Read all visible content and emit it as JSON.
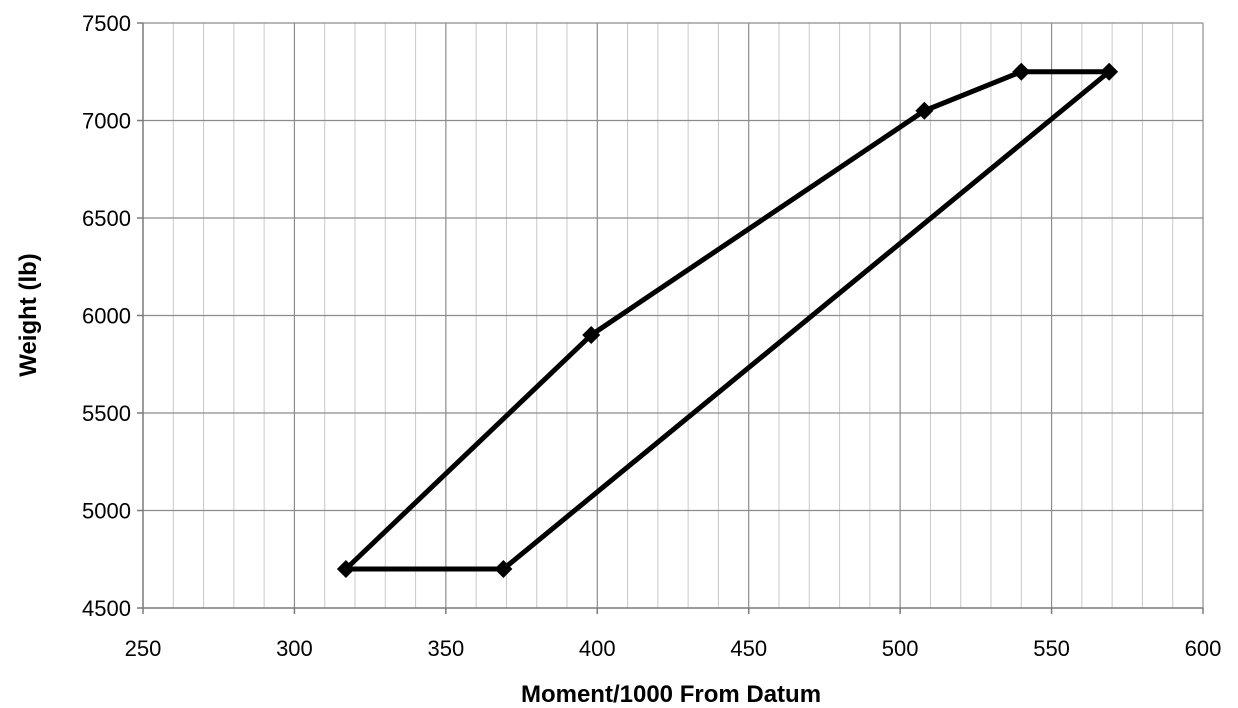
{
  "chart_data": {
    "type": "line",
    "title": "",
    "xlabel": "Moment/1000 From Datum",
    "ylabel": "Weight (lb)",
    "xlim": [
      250,
      600
    ],
    "ylim": [
      4500,
      7500
    ],
    "x_major_ticks": [
      250,
      300,
      350,
      400,
      450,
      500,
      550,
      600
    ],
    "x_tick_labels": [
      "250",
      "300",
      "350",
      "400",
      "450",
      "500",
      "550",
      "600"
    ],
    "x_minor_step": 10,
    "y_major_ticks": [
      4500,
      5000,
      5500,
      6000,
      6500,
      7000,
      7500
    ],
    "y_tick_labels": [
      "4500",
      "5000",
      "5500",
      "6000",
      "6500",
      "7000",
      "7500"
    ],
    "grid": true,
    "legend": "none",
    "series": [
      {
        "color": "#000000",
        "marker": "diamond",
        "points": [
          {
            "x": 317,
            "y": 4700
          },
          {
            "x": 398,
            "y": 5900
          },
          {
            "x": 508,
            "y": 7050
          },
          {
            "x": 540,
            "y": 7250
          },
          {
            "x": 569,
            "y": 7250
          },
          {
            "x": 369,
            "y": 4700
          },
          {
            "x": 317,
            "y": 4700
          }
        ]
      }
    ]
  }
}
